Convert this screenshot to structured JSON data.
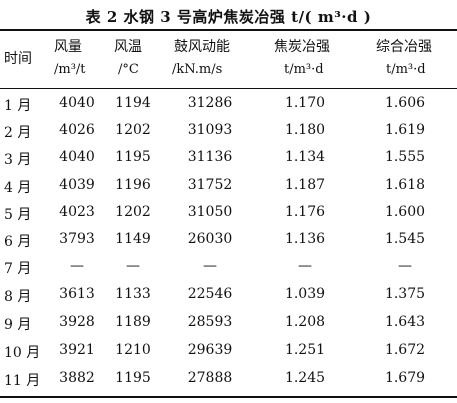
{
  "title": "表 2   水钢 3 号高炉焦炭冶强 t/( m³·d )",
  "header": {
    "month": "时间",
    "col1": {
      "name": "风量",
      "unit": "/m³/t"
    },
    "col2": {
      "name": "风温",
      "unit": "/°C"
    },
    "col3": {
      "name": "鼓风动能",
      "unit": "/kN.m/s"
    },
    "col4": {
      "name": "焦炭冶强",
      "unit": "t/m³·d"
    },
    "col5": {
      "name": "综合冶强",
      "unit": "t/m³·d"
    }
  },
  "rows": [
    {
      "month": "1 月",
      "air": "4040",
      "temp": "1194",
      "energy": "31286",
      "coke": "1.170",
      "total": "1.606"
    },
    {
      "month": "2 月",
      "air": "4026",
      "temp": "1202",
      "energy": "31093",
      "coke": "1.180",
      "total": "1.619"
    },
    {
      "month": "3 月",
      "air": "4040",
      "temp": "1195",
      "energy": "31136",
      "coke": "1.134",
      "total": "1.555"
    },
    {
      "month": "4 月",
      "air": "4039",
      "temp": "1196",
      "energy": "31752",
      "coke": "1.187",
      "total": "1.618"
    },
    {
      "month": "5 月",
      "air": "4023",
      "temp": "1202",
      "energy": "31050",
      "coke": "1.176",
      "total": "1.600"
    },
    {
      "month": "6 月",
      "air": "3793",
      "temp": "1149",
      "energy": "26030",
      "coke": "1.136",
      "total": "1.545"
    },
    {
      "month": "7 月",
      "air": "—",
      "temp": "—",
      "energy": "—",
      "coke": "—",
      "total": "—"
    },
    {
      "month": "8 月",
      "air": "3613",
      "temp": "1133",
      "energy": "22546",
      "coke": "1.039",
      "total": "1.375"
    },
    {
      "month": "9 月",
      "air": "3928",
      "temp": "1189",
      "energy": "28593",
      "coke": "1.208",
      "total": "1.643"
    },
    {
      "month": "10 月",
      "air": "3921",
      "temp": "1210",
      "energy": "29639",
      "coke": "1.251",
      "total": "1.672"
    },
    {
      "month": "11 月",
      "air": "3882",
      "temp": "1195",
      "energy": "27888",
      "coke": "1.245",
      "total": "1.679"
    }
  ]
}
